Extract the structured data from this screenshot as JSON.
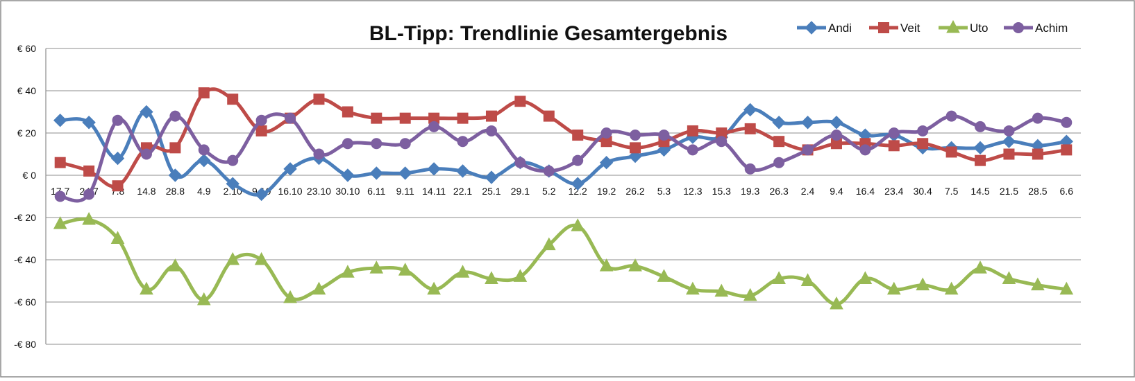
{
  "chart_data": {
    "type": "line",
    "title": "BL-Tipp: Trendlinie Gesamtergebnis",
    "xlabel": "",
    "ylabel": "",
    "ylim": [
      -80,
      60
    ],
    "yticks": [
      60,
      40,
      20,
      0,
      -20,
      -40,
      -60,
      -80
    ],
    "ytick_labels": [
      "€ 60",
      "€ 40",
      "€ 20",
      "€ 0",
      "-€ 20",
      "-€ 40",
      "-€ 60",
      "-€ 80"
    ],
    "grid": true,
    "legend_position": "top-right",
    "categories": [
      "17.7",
      "24.7",
      "7.8",
      "14.8",
      "28.8",
      "4.9",
      "2.10",
      "9.10",
      "16.10",
      "23.10",
      "30.10",
      "6.11",
      "9.11",
      "14.11",
      "22.1",
      "25.1",
      "29.1",
      "5.2",
      "12.2",
      "19.2",
      "26.2",
      "5.3",
      "12.3",
      "15.3",
      "19.3",
      "26.3",
      "2.4",
      "9.4",
      "16.4",
      "23.4",
      "30.4",
      "7.5",
      "14.5",
      "21.5",
      "28.5",
      "6.6"
    ],
    "series": [
      {
        "name": "Andi",
        "color": "#4a7ebb",
        "marker": "diamond",
        "values": [
          26,
          25,
          8,
          30,
          0,
          7,
          -4,
          -9,
          3,
          8,
          0,
          1,
          1,
          3,
          2,
          -1,
          6,
          2,
          -4,
          6,
          9,
          12,
          18,
          18,
          31,
          25,
          25,
          25,
          19,
          19,
          13,
          13,
          13,
          16,
          14,
          16
        ]
      },
      {
        "name": "Veit",
        "color": "#be4b48",
        "marker": "square",
        "values": [
          6,
          2,
          -5,
          13,
          13,
          39,
          36,
          21,
          27,
          36,
          30,
          27,
          27,
          27,
          27,
          28,
          35,
          28,
          19,
          16,
          13,
          16,
          21,
          20,
          22,
          16,
          12,
          15,
          15,
          14,
          15,
          11,
          7,
          10,
          10,
          12
        ]
      },
      {
        "name": "Uto",
        "color": "#98b954",
        "marker": "triangle",
        "values": [
          -23,
          -21,
          -30,
          -54,
          -43,
          -59,
          -40,
          -40,
          -58,
          -54,
          -46,
          -44,
          -45,
          -54,
          -46,
          -49,
          -48,
          -33,
          -24,
          -43,
          -43,
          -48,
          -54,
          -55,
          -57,
          -49,
          -50,
          -61,
          -49,
          -54,
          -52,
          -54,
          -44,
          -49,
          -52,
          -54
        ]
      },
      {
        "name": "Achim",
        "color": "#7d5fa0",
        "marker": "circle",
        "values": [
          -10,
          -9,
          26,
          10,
          28,
          12,
          7,
          26,
          27,
          10,
          15,
          15,
          15,
          23,
          16,
          21,
          6,
          2,
          7,
          20,
          19,
          19,
          12,
          16,
          3,
          6,
          12,
          19,
          12,
          20,
          21,
          28,
          23,
          21,
          27,
          25
        ]
      }
    ]
  }
}
